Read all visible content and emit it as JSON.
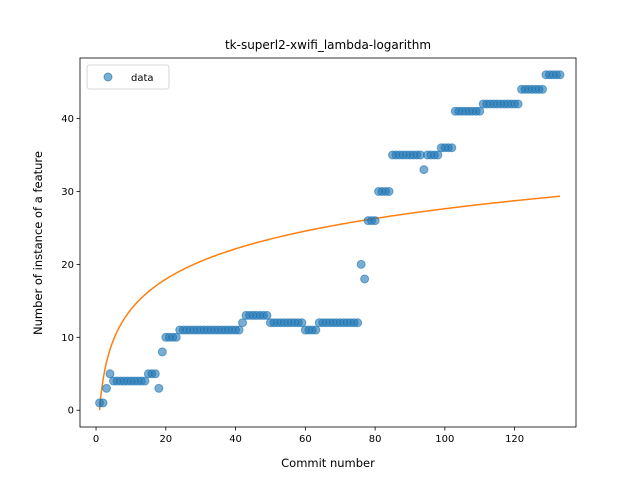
{
  "chart_data": {
    "type": "scatter",
    "title": "tk-superl2-xwifi_lambda-logarithm",
    "xlabel": "Commit number",
    "ylabel": "Number of instance of a feature",
    "xlim": [
      -4.6,
      137.6
    ],
    "ylim": [
      -2.3,
      48.3
    ],
    "xticks": [
      0,
      20,
      40,
      60,
      80,
      100,
      120
    ],
    "yticks": [
      0,
      10,
      20,
      30,
      40
    ],
    "grid": false,
    "legend": {
      "placement": "top-left",
      "entries": [
        "data"
      ]
    },
    "colors": {
      "data": "#1f77b4",
      "fit": "#ff7f0e"
    },
    "series": [
      {
        "name": "data",
        "kind": "scatter",
        "x": [
          1,
          2,
          3,
          4,
          5,
          6,
          7,
          8,
          9,
          10,
          11,
          12,
          13,
          14,
          15,
          16,
          17,
          18,
          19,
          20,
          21,
          22,
          23,
          24,
          25,
          26,
          27,
          28,
          29,
          30,
          31,
          32,
          33,
          34,
          35,
          36,
          37,
          38,
          39,
          40,
          41,
          42,
          43,
          44,
          45,
          46,
          47,
          48,
          49,
          50,
          51,
          52,
          53,
          54,
          55,
          56,
          57,
          58,
          59,
          60,
          61,
          62,
          63,
          64,
          65,
          66,
          67,
          68,
          69,
          70,
          71,
          72,
          73,
          74,
          75,
          76,
          77,
          78,
          79,
          80,
          81,
          82,
          83,
          84,
          85,
          86,
          87,
          88,
          89,
          90,
          91,
          92,
          93,
          94,
          95,
          96,
          97,
          98,
          99,
          100,
          101,
          102,
          103,
          104,
          105,
          106,
          107,
          108,
          109,
          110,
          111,
          112,
          113,
          114,
          115,
          116,
          117,
          118,
          119,
          120,
          121,
          122,
          123,
          124,
          125,
          126,
          127,
          128,
          129,
          130,
          131,
          132,
          133
        ],
        "y": [
          1,
          1,
          3,
          5,
          4,
          4,
          4,
          4,
          4,
          4,
          4,
          4,
          4,
          4,
          5,
          5,
          5,
          3,
          8,
          10,
          10,
          10,
          10,
          11,
          11,
          11,
          11,
          11,
          11,
          11,
          11,
          11,
          11,
          11,
          11,
          11,
          11,
          11,
          11,
          11,
          11,
          12,
          13,
          13,
          13,
          13,
          13,
          13,
          13,
          12,
          12,
          12,
          12,
          12,
          12,
          12,
          12,
          12,
          12,
          11,
          11,
          11,
          11,
          12,
          12,
          12,
          12,
          12,
          12,
          12,
          12,
          12,
          12,
          12,
          12,
          20,
          18,
          26,
          26,
          26,
          30,
          30,
          30,
          30,
          35,
          35,
          35,
          35,
          35,
          35,
          35,
          35,
          35,
          33,
          35,
          35,
          35,
          35,
          36,
          36,
          36,
          36,
          41,
          41,
          41,
          41,
          41,
          41,
          41,
          41,
          42,
          42,
          42,
          42,
          42,
          42,
          42,
          42,
          42,
          42,
          42,
          44,
          44,
          44,
          44,
          44,
          44,
          44,
          46,
          46,
          46,
          46,
          46
        ]
      },
      {
        "name": "",
        "kind": "line",
        "fit": {
          "type": "log",
          "a": 6.0,
          "b": 0.0
        },
        "x_range": [
          1,
          133
        ]
      }
    ]
  }
}
